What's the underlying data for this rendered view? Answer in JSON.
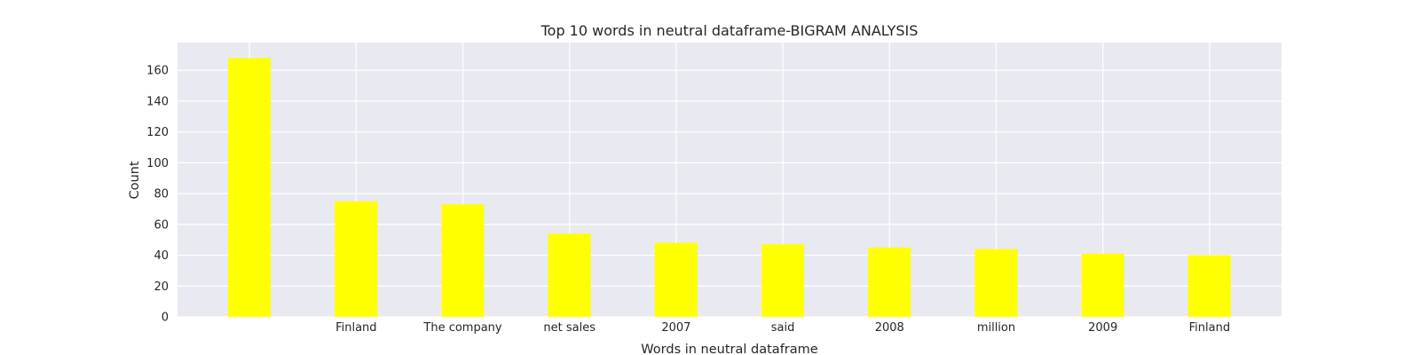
{
  "chart_data": {
    "type": "bar",
    "title": "Top 10 words in neutral dataframe-BIGRAM ANALYSIS",
    "xlabel": "Words in neutral dataframe",
    "ylabel": "Count",
    "categories": [
      "",
      "Finland",
      "The company",
      "net sales",
      "2007",
      "said",
      "2008",
      "million",
      "2009",
      "Finland"
    ],
    "values": [
      168,
      75,
      73,
      54,
      48,
      47,
      45,
      44,
      41,
      40
    ],
    "ylim": [
      0,
      178
    ],
    "yticks": [
      0,
      20,
      40,
      60,
      80,
      100,
      120,
      140,
      160
    ],
    "grid": true,
    "bar_color": "#ffff00",
    "background_color": "#e9e9f1",
    "grid_color": "#ffffff"
  }
}
